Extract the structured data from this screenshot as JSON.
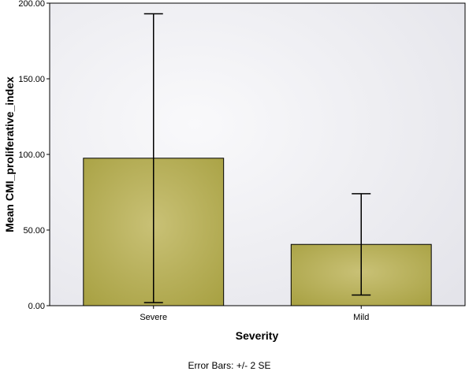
{
  "chart_data": {
    "type": "bar",
    "categories": [
      "Severe",
      "Mild"
    ],
    "values": [
      97.5,
      40.5
    ],
    "error_bars": [
      {
        "low": 2.0,
        "high": 193.0
      },
      {
        "low": 7.0,
        "high": 74.0
      }
    ],
    "xlabel": "Severity",
    "ylabel": "Mean CMI_proliferative_index",
    "ylim": [
      0,
      200
    ],
    "yticks": [
      0,
      50,
      100,
      150,
      200
    ],
    "ytick_labels": [
      "0.00",
      "50.00",
      "100.00",
      "150.00",
      "200.00"
    ],
    "footnote": "Error Bars: +/- 2 SE",
    "grid": false,
    "legend": "none",
    "colors": {
      "bar_fill_center": "#c9c176",
      "bar_fill_edge": "#a9a244",
      "plot_bg_center": "#f9f9fb",
      "plot_bg_edge": "#e4e4ea"
    }
  }
}
